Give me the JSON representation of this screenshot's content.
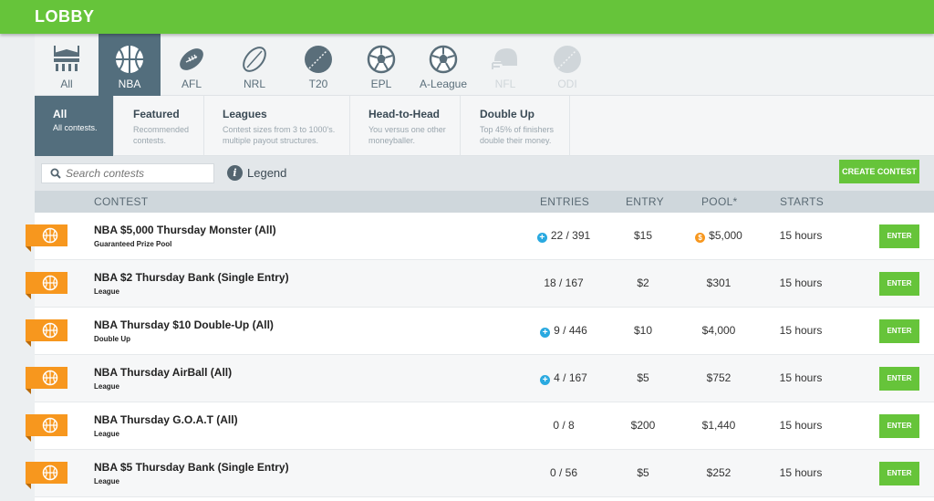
{
  "header": {
    "title": "LOBBY"
  },
  "sports": [
    {
      "label": "All",
      "icon": "stadium-icon",
      "state": "normal"
    },
    {
      "label": "NBA",
      "icon": "basketball-icon",
      "state": "active"
    },
    {
      "label": "AFL",
      "icon": "football-icon",
      "state": "normal"
    },
    {
      "label": "NRL",
      "icon": "rugby-ball-icon",
      "state": "normal"
    },
    {
      "label": "T20",
      "icon": "cricket-ball-icon",
      "state": "normal"
    },
    {
      "label": "EPL",
      "icon": "soccer-ball-icon",
      "state": "normal"
    },
    {
      "label": "A-League",
      "icon": "soccer-ball-icon",
      "state": "normal"
    },
    {
      "label": "NFL",
      "icon": "helmet-icon",
      "state": "disabled"
    },
    {
      "label": "ODI",
      "icon": "cricket-ball-icon",
      "state": "disabled"
    }
  ],
  "filters": [
    {
      "title": "All",
      "desc": "All contests.",
      "active": true
    },
    {
      "title": "Featured",
      "desc": "Recommended contests.",
      "active": false
    },
    {
      "title": "Leagues",
      "desc": "Contest sizes from 3 to 1000's. multiple payout structures.",
      "active": false
    },
    {
      "title": "Head-to-Head",
      "desc": "You versus one other moneyballer.",
      "active": false
    },
    {
      "title": "Double Up",
      "desc": "Top 45% of finishers double their money.",
      "active": false
    }
  ],
  "search": {
    "placeholder": "Search contests"
  },
  "legend": {
    "label": "Legend"
  },
  "create_button": "CREATE CONTEST",
  "table": {
    "headers": {
      "contest": "CONTEST",
      "entries": "ENTRIES",
      "entry": "ENTRY",
      "pool": "POOL*",
      "starts": "STARTS"
    },
    "enter_label": "ENTER",
    "rows": [
      {
        "name": "NBA $5,000 Thursday Monster (All)",
        "type": "Guaranteed Prize Pool",
        "entries": "22 / 391",
        "multi": true,
        "entry": "$15",
        "pool": "$5,000",
        "guaranteed": true,
        "starts": "15 hours"
      },
      {
        "name": "NBA $2 Thursday Bank (Single Entry)",
        "type": "League",
        "entries": "18 / 167",
        "multi": false,
        "entry": "$2",
        "pool": "$301",
        "guaranteed": false,
        "starts": "15 hours"
      },
      {
        "name": "NBA Thursday $10 Double-Up (All)",
        "type": "Double Up",
        "entries": "9 / 446",
        "multi": true,
        "entry": "$10",
        "pool": "$4,000",
        "guaranteed": false,
        "starts": "15 hours"
      },
      {
        "name": "NBA Thursday AirBall (All)",
        "type": "League",
        "entries": "4 / 167",
        "multi": true,
        "entry": "$5",
        "pool": "$752",
        "guaranteed": false,
        "starts": "15 hours"
      },
      {
        "name": "NBA Thursday G.O.A.T (All)",
        "type": "League",
        "entries": "0 / 8",
        "multi": false,
        "entry": "$200",
        "pool": "$1,440",
        "guaranteed": false,
        "starts": "15 hours"
      },
      {
        "name": "NBA $5 Thursday Bank (Single Entry)",
        "type": "League",
        "entries": "0 / 56",
        "multi": false,
        "entry": "$5",
        "pool": "$252",
        "guaranteed": false,
        "starts": "15 hours"
      }
    ]
  },
  "colors": {
    "brand_green": "#66c43a",
    "active_tab": "#536e7d",
    "flag_orange": "#f7971e",
    "multi_entry_blue": "#29a9e0"
  }
}
